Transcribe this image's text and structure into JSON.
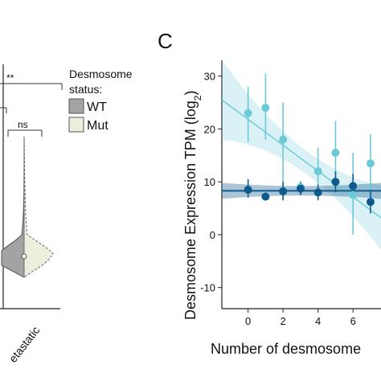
{
  "panel_label": "C",
  "legend": {
    "title_line1": "Desmosome",
    "title_line2": "status:",
    "items": [
      {
        "label": "WT",
        "color": "#a3a3a3"
      },
      {
        "label": "Mut",
        "color": "#eeeedf"
      }
    ]
  },
  "violin_panel": {
    "significance_labels": [
      "**",
      "ns"
    ],
    "x_tick_label": "etastatic"
  },
  "chart_data": {
    "type": "scatter",
    "xlabel": "Number of desmosome",
    "ylabel": "Desmosome Expression TPM (log",
    "ylabel_sub": "2",
    "ylabel_close": ")",
    "xlim": [
      -1.5,
      7.6
    ],
    "ylim": [
      -14,
      33
    ],
    "xticks": [
      0,
      2,
      4,
      6
    ],
    "yticks": [
      -10,
      0,
      10,
      20,
      30
    ],
    "grid": false,
    "colors": {
      "light": "#6cc9d6",
      "dark": "#0f5a8c"
    },
    "series": [
      {
        "points": [
          {
            "x": 0,
            "y": 23,
            "lo": 17.5,
            "hi": 28
          },
          {
            "x": 1,
            "y": 24,
            "lo": 18,
            "hi": 30.5
          },
          {
            "x": 2,
            "y": 18,
            "lo": 10,
            "hi": 25
          },
          {
            "x": 3,
            "y": 9,
            "lo": 8,
            "hi": 10
          },
          {
            "x": 4,
            "y": 12,
            "lo": 8,
            "hi": 16.5
          },
          {
            "x": 5,
            "y": 15.5,
            "lo": 10,
            "hi": 21.5
          },
          {
            "x": 6,
            "y": 7.5,
            "lo": 0,
            "hi": 15.5
          },
          {
            "x": 7,
            "y": 13.5,
            "lo": 8,
            "hi": 19
          }
        ],
        "fit": {
          "y_at_xmin": 25.5,
          "slope": -2.45
        }
      },
      {
        "points": [
          {
            "x": 0,
            "y": 8.5,
            "lo": 7,
            "hi": 10.5
          },
          {
            "x": 1,
            "y": 7.2,
            "lo": 6.5,
            "hi": 8
          },
          {
            "x": 2,
            "y": 8.2,
            "lo": 6.5,
            "hi": 10
          },
          {
            "x": 3,
            "y": 8.7,
            "lo": 7.5,
            "hi": 10
          },
          {
            "x": 4,
            "y": 8,
            "lo": 6.5,
            "hi": 9.5
          },
          {
            "x": 5,
            "y": 10,
            "lo": 8,
            "hi": 12
          },
          {
            "x": 6,
            "y": 9.2,
            "lo": 7,
            "hi": 11.5
          },
          {
            "x": 7,
            "y": 6.2,
            "lo": 4,
            "hi": 8.5
          }
        ],
        "fit": {
          "y_at_xmin": 8.3,
          "slope": 0
        }
      }
    ]
  }
}
